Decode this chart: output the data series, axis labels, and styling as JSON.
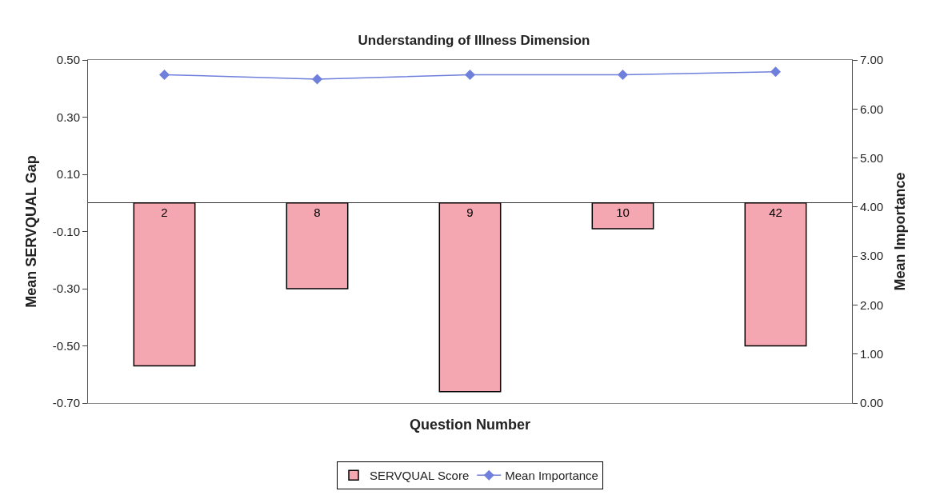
{
  "chart_data": {
    "type": "bar",
    "title": "Understanding of Illness Dimension",
    "xlabel": "Question Number",
    "ylabel": "Mean SERVQUAL Gap",
    "y2label": "Mean Importance",
    "categories": [
      "2",
      "8",
      "9",
      "10",
      "42"
    ],
    "series": [
      {
        "name": "SERVQUAL Score",
        "color": "#f4a7b0",
        "values": [
          -0.57,
          -0.3,
          -0.66,
          -0.09,
          -0.5
        ]
      },
      {
        "name": "Mean Importance",
        "type": "line",
        "axis": "y2",
        "color": "#6f7fdc",
        "marker": "diamond",
        "values": [
          6.7,
          6.61,
          6.7,
          6.7,
          6.76
        ]
      }
    ],
    "ylim": [
      -0.7,
      0.5
    ],
    "yticks": [
      {
        "value": -0.7,
        "label": "-0.70"
      },
      {
        "value": -0.5,
        "label": "-0.50"
      },
      {
        "value": -0.3,
        "label": "-0.30"
      },
      {
        "value": -0.1,
        "label": "-0.10"
      },
      {
        "value": 0.1,
        "label": "0.10"
      },
      {
        "value": 0.3,
        "label": "0.30"
      },
      {
        "value": 0.5,
        "label": "0.50"
      }
    ],
    "y2lim": [
      0,
      7
    ],
    "y2ticks": [
      {
        "value": 0,
        "label": "0.00"
      },
      {
        "value": 1,
        "label": "1.00"
      },
      {
        "value": 2,
        "label": "2.00"
      },
      {
        "value": 3,
        "label": "3.00"
      },
      {
        "value": 4,
        "label": "4.00"
      },
      {
        "value": 5,
        "label": "5.00"
      },
      {
        "value": 6,
        "label": "6.00"
      },
      {
        "value": 7,
        "label": "7.00"
      }
    ],
    "tick_labels": "y",
    "legend": "bottom"
  }
}
